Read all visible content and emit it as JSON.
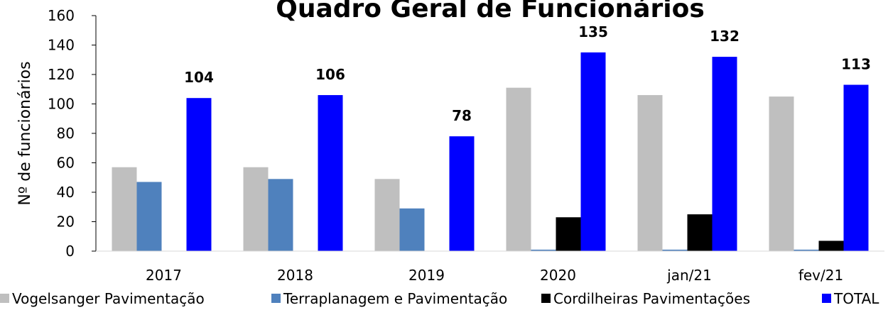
{
  "chart_data": {
    "type": "bar",
    "title": "Quadro Geral de Funcionários",
    "y_label": "Nº de funcionários",
    "categories": [
      "2017",
      "2018",
      "2019",
      "2020",
      "jan/21",
      "fev/21"
    ],
    "series": [
      {
        "name": "Vogelsanger Pavimentação",
        "color": "#bfbfbf",
        "values": [
          57,
          57,
          49,
          111,
          106,
          105
        ]
      },
      {
        "name": "Terraplanagem e Pavimentação",
        "color": "#4f81bd",
        "values": [
          47,
          49,
          29,
          1,
          1,
          1
        ]
      },
      {
        "name": "Cordilheiras Pavimentações",
        "color": "#000000",
        "values": [
          0,
          0,
          0,
          23,
          25,
          7
        ]
      },
      {
        "name": "TOTAL",
        "color": "#0000ff",
        "values": [
          104,
          106,
          78,
          135,
          132,
          113
        ]
      }
    ],
    "ylim": [
      0,
      160
    ],
    "yticks": [
      0,
      20,
      40,
      60,
      80,
      100,
      120,
      140,
      160
    ],
    "grid": false,
    "data_labels_series": "TOTAL",
    "legend": "bottom"
  }
}
